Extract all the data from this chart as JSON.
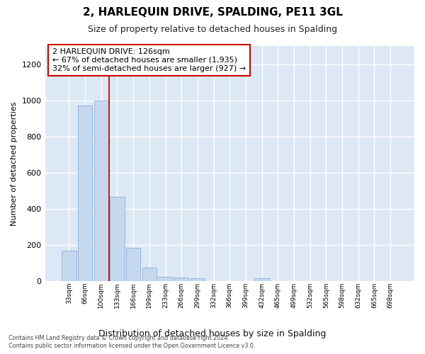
{
  "title": "2, HARLEQUIN DRIVE, SPALDING, PE11 3GL",
  "subtitle": "Size of property relative to detached houses in Spalding",
  "xlabel": "Distribution of detached houses by size in Spalding",
  "ylabel": "Number of detached properties",
  "bar_color": "#c5d8ee",
  "bar_edge_color": "#8ab0d8",
  "fig_background_color": "#ffffff",
  "ax_background_color": "#dde8f5",
  "grid_color": "#ffffff",
  "categories": [
    "33sqm",
    "66sqm",
    "100sqm",
    "133sqm",
    "166sqm",
    "199sqm",
    "233sqm",
    "266sqm",
    "299sqm",
    "332sqm",
    "366sqm",
    "399sqm",
    "432sqm",
    "465sqm",
    "499sqm",
    "532sqm",
    "565sqm",
    "598sqm",
    "632sqm",
    "665sqm",
    "698sqm"
  ],
  "values": [
    170,
    970,
    1000,
    465,
    185,
    75,
    25,
    20,
    15,
    0,
    0,
    0,
    15,
    0,
    0,
    0,
    0,
    0,
    0,
    0,
    0
  ],
  "red_line_x": 2.5,
  "annotation_text": "2 HARLEQUIN DRIVE: 126sqm\n← 67% of detached houses are smaller (1,935)\n32% of semi-detached houses are larger (927) →",
  "annotation_box_facecolor": "#ffffff",
  "annotation_border_color": "#cc0000",
  "ylim": [
    0,
    1300
  ],
  "yticks": [
    0,
    200,
    400,
    600,
    800,
    1000,
    1200
  ],
  "title_fontsize": 11,
  "subtitle_fontsize": 9,
  "ylabel_fontsize": 8,
  "xlabel_fontsize": 9,
  "footer_line1": "Contains HM Land Registry data © Crown copyright and database right 2024.",
  "footer_line2": "Contains public sector information licensed under the Open Government Licence v3.0."
}
